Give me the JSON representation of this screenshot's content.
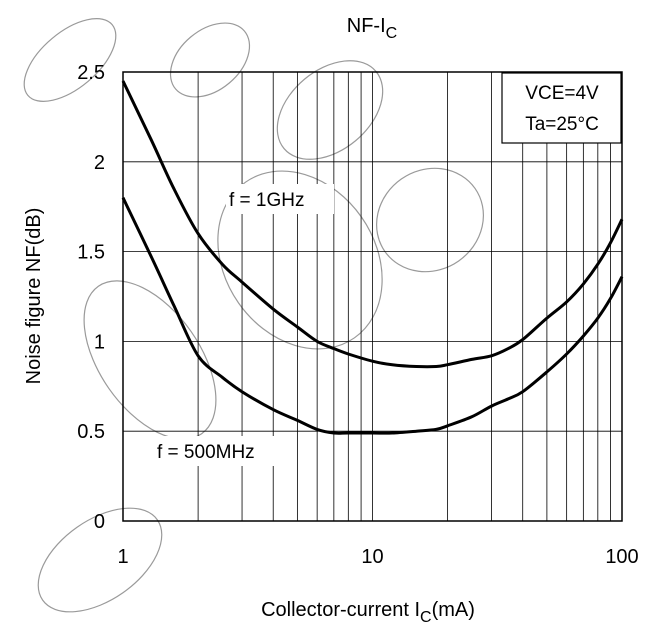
{
  "chart_data": {
    "type": "line",
    "title_main": "NF-I",
    "title_sub": "C",
    "xlabel_main": "Collector-current I",
    "xlabel_sub": "C",
    "xlabel_unit": "(mA)",
    "ylabel": "Noise figure NF(dB)",
    "x_scale": "log",
    "xlim": [
      1,
      100
    ],
    "ylim": [
      0,
      2.5
    ],
    "x_ticks": [
      1,
      10,
      100
    ],
    "x_tick_labels": [
      "1",
      "10",
      "100"
    ],
    "y_ticks": [
      0,
      0.5,
      1,
      1.5,
      2,
      2.5
    ],
    "y_tick_labels": [
      "0",
      "0.5",
      "1",
      "1.5",
      "2",
      "2.5"
    ],
    "grid": true,
    "conditions": [
      "VCE=4V",
      "Ta=25°C"
    ],
    "series": [
      {
        "name": "f = 1GHz",
        "x": [
          1,
          1.3,
          1.6,
          2,
          2.5,
          3,
          4,
          5,
          6,
          7,
          8,
          10,
          12,
          15,
          18,
          20,
          25,
          30,
          35,
          40,
          50,
          60,
          70,
          80,
          90,
          100
        ],
        "y": [
          2.45,
          2.12,
          1.85,
          1.6,
          1.43,
          1.33,
          1.18,
          1.08,
          1.0,
          0.96,
          0.93,
          0.89,
          0.87,
          0.86,
          0.86,
          0.87,
          0.9,
          0.92,
          0.96,
          1.01,
          1.13,
          1.22,
          1.32,
          1.43,
          1.55,
          1.68
        ]
      },
      {
        "name": "f = 500MHz",
        "x": [
          1,
          1.3,
          1.6,
          2,
          2.5,
          3,
          4,
          5,
          6,
          7,
          8,
          10,
          12,
          15,
          18,
          20,
          25,
          30,
          35,
          40,
          50,
          60,
          70,
          80,
          90,
          100
        ],
        "y": [
          1.8,
          1.47,
          1.2,
          0.92,
          0.8,
          0.72,
          0.62,
          0.56,
          0.51,
          0.49,
          0.49,
          0.49,
          0.49,
          0.5,
          0.51,
          0.53,
          0.58,
          0.64,
          0.68,
          0.72,
          0.83,
          0.93,
          1.03,
          1.13,
          1.24,
          1.36
        ]
      }
    ]
  }
}
